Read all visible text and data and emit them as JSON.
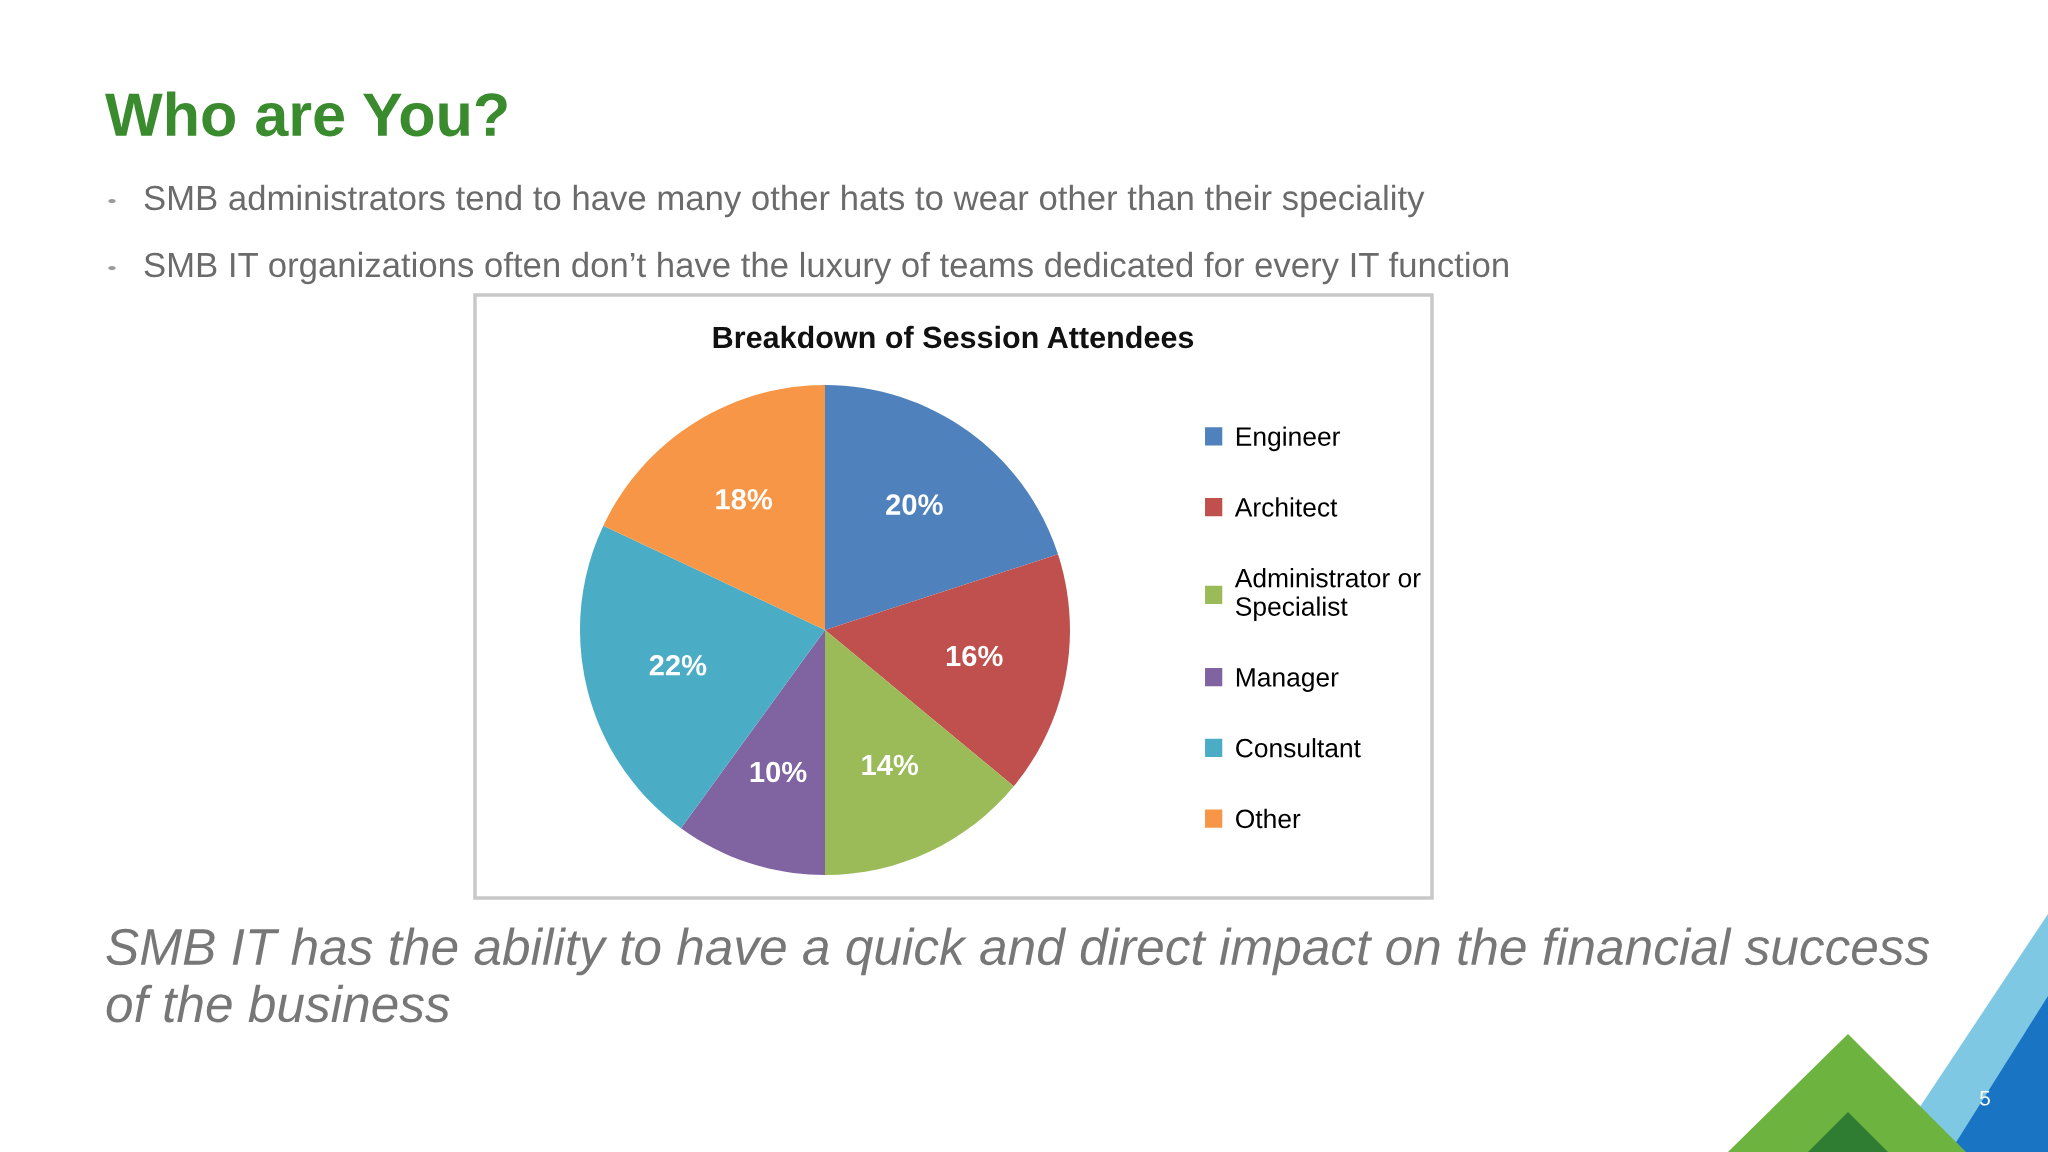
{
  "chart_data": {
    "type": "pie",
    "title": "Breakdown of Session Attendees",
    "categories": [
      "Engineer",
      "Architect",
      "Administrator or\nSpecialist",
      "Manager",
      "Consultant",
      "Other"
    ],
    "values": [
      20,
      16,
      14,
      10,
      22,
      18
    ],
    "value_labels": [
      "20%",
      "16%",
      "14%",
      "10%",
      "22%",
      "18%"
    ],
    "colors": [
      "#4f81bd",
      "#c0504d",
      "#9bbb59",
      "#8064a2",
      "#4bacc6",
      "#f79646"
    ],
    "legend": "right",
    "annotations": [
      "Who are You?",
      "SMB administrators tend to have many other hats to wear other than their speciality",
      "SMB IT organizations often don’t have the luxury of teams dedicated for every IT function",
      "SMB IT has the ability to have a quick and direct impact on the financial success\nof the business",
      "5"
    ]
  }
}
